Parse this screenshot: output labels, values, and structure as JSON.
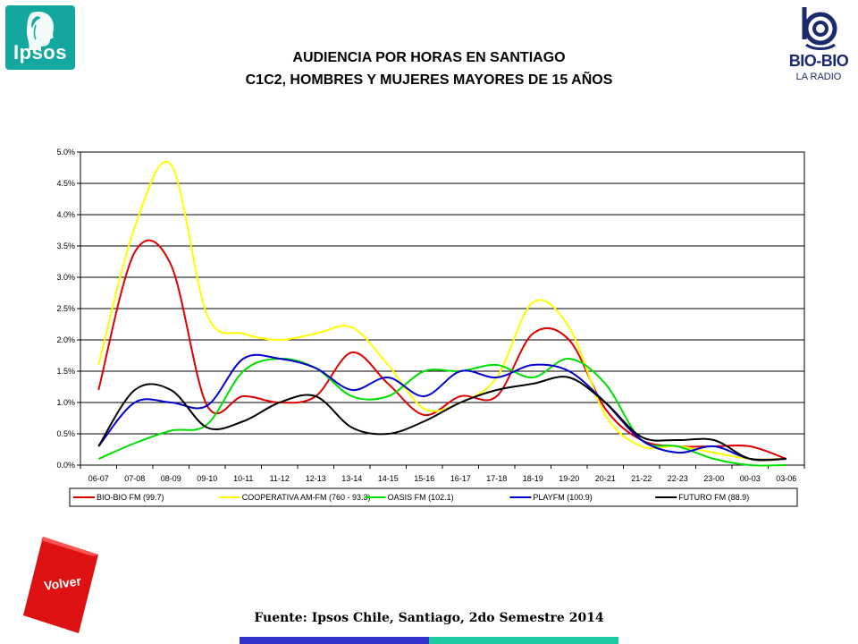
{
  "header": {
    "title_line1": "AUDIENCIA POR HORAS EN SANTIAGO",
    "title_line2": "C1C2, HOMBRES Y MUJERES MAYORES DE 15 AÑOS"
  },
  "logos": {
    "ipsos": "Ipsos",
    "biobio_name": "BIO-BIO",
    "biobio_sub": "LA RADIO"
  },
  "nav": {
    "volver_label": "Volver"
  },
  "footer": {
    "source": "Fuente: Ipsos Chile, Santiago, 2do Semestre 2014"
  },
  "colors": {
    "ipsos_teal": "#14a7a0",
    "biobio_blue": "#1a2a6c",
    "volver_red": "#dd1111",
    "bar_blue": "#3333cc",
    "bar_teal": "#1ec8a0"
  },
  "chart_data": {
    "type": "line",
    "categories": [
      "06-07",
      "07-08",
      "08-09",
      "09-10",
      "10-11",
      "11-12",
      "12-13",
      "13-14",
      "14-15",
      "15-16",
      "16-17",
      "17-18",
      "18-19",
      "19-20",
      "20-21",
      "21-22",
      "22-23",
      "23-00",
      "00-03",
      "03-06"
    ],
    "y_ticks": [
      "0.0%",
      "0.5%",
      "1.0%",
      "1.5%",
      "2.0%",
      "2.5%",
      "3.0%",
      "3.5%",
      "4.0%",
      "4.5%",
      "5.0%"
    ],
    "ylim": [
      0,
      5
    ],
    "grid": true,
    "legend_position": "bottom",
    "series": [
      {
        "name": "BIO-BIO FM (99.7)",
        "color": "#dd0000",
        "values": [
          1.2,
          3.4,
          3.2,
          0.95,
          1.1,
          1.0,
          1.1,
          1.8,
          1.3,
          0.8,
          1.1,
          1.1,
          2.1,
          2.0,
          0.9,
          0.4,
          0.3,
          0.3,
          0.3,
          0.1
        ]
      },
      {
        "name": "COOPERATIVA AM-FM (760 - 93.3)",
        "color": "#ffff00",
        "values": [
          1.6,
          3.8,
          4.8,
          2.4,
          2.1,
          2.0,
          2.1,
          2.2,
          1.6,
          0.9,
          1.0,
          1.4,
          2.6,
          2.2,
          0.8,
          0.3,
          0.3,
          0.2,
          0.1,
          0.1
        ]
      },
      {
        "name": "OASIS FM (102.1)",
        "color": "#00dd00",
        "values": [
          0.1,
          0.35,
          0.55,
          0.65,
          1.5,
          1.7,
          1.55,
          1.1,
          1.1,
          1.5,
          1.5,
          1.6,
          1.4,
          1.7,
          1.3,
          0.4,
          0.3,
          0.1,
          0.0,
          0.0
        ]
      },
      {
        "name": "PLAYFM (100.9)",
        "color": "#0000cc",
        "values": [
          0.3,
          1.0,
          1.0,
          0.95,
          1.7,
          1.7,
          1.55,
          1.2,
          1.4,
          1.1,
          1.5,
          1.4,
          1.6,
          1.5,
          1.0,
          0.4,
          0.2,
          0.3,
          0.1,
          0.1
        ]
      },
      {
        "name": "FUTURO FM (88.9)",
        "color": "#000000",
        "values": [
          0.3,
          1.2,
          1.2,
          0.6,
          0.7,
          1.0,
          1.1,
          0.6,
          0.5,
          0.7,
          1.0,
          1.2,
          1.3,
          1.4,
          1.0,
          0.45,
          0.4,
          0.4,
          0.1,
          0.1
        ]
      }
    ]
  }
}
